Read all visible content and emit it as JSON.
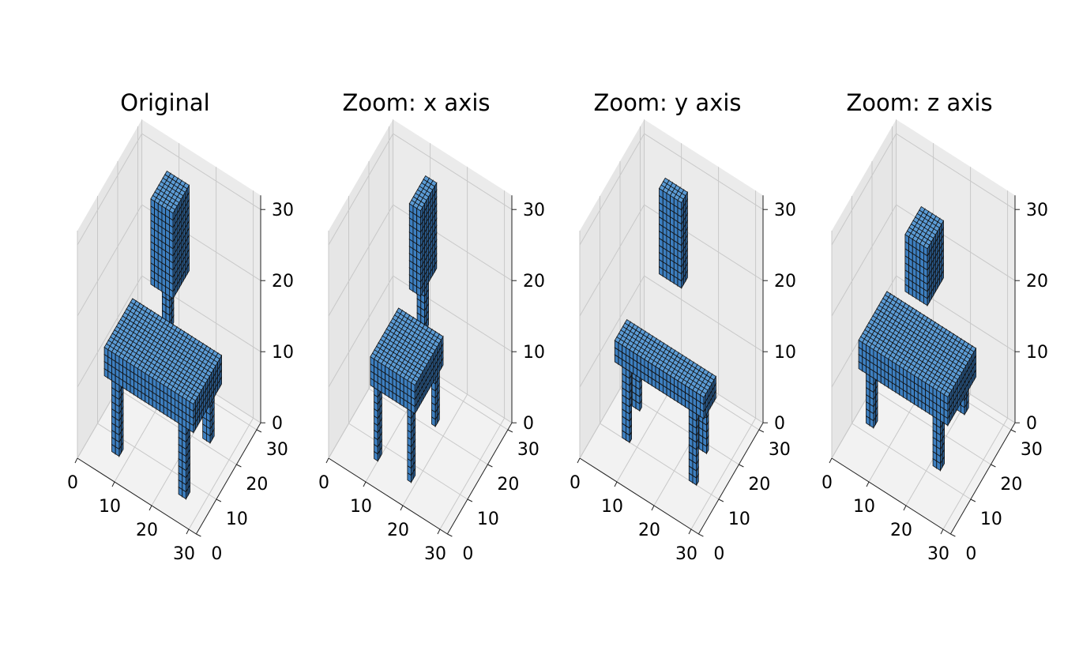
{
  "colors": {
    "voxel": "#3d7fc0",
    "voxel_top": "#5b9bd5",
    "voxel_side": "#2b5f94",
    "edge": "#111111"
  },
  "chart_data": [
    {
      "type": "voxel3d",
      "title": "Original",
      "xticks": [
        "0",
        "10",
        "20",
        "30"
      ],
      "yticks": [
        "0",
        "10",
        "20",
        "30"
      ],
      "zticks": [
        "0",
        "10",
        "20",
        "30"
      ],
      "xlim": [
        0,
        32
      ],
      "ylim": [
        0,
        32
      ],
      "zlim": [
        0,
        32
      ],
      "grid": true,
      "parts": [
        {
          "part": "back",
          "x": [
            10,
            16
          ],
          "y": [
            18,
            26
          ],
          "z": [
            19,
            31
          ]
        },
        {
          "part": "backpost",
          "x": [
            12,
            14
          ],
          "y": [
            20,
            22
          ],
          "z": [
            13,
            19
          ]
        },
        {
          "part": "seat",
          "x": [
            4,
            28
          ],
          "y": [
            6,
            20
          ],
          "z": [
            10,
            14
          ]
        },
        {
          "part": "leg",
          "x": [
            6,
            8
          ],
          "y": [
            6,
            8
          ],
          "z": [
            0,
            10
          ]
        },
        {
          "part": "leg",
          "x": [
            24,
            26
          ],
          "y": [
            6,
            8
          ],
          "z": [
            0,
            10
          ]
        },
        {
          "part": "leg",
          "x": [
            6,
            8
          ],
          "y": [
            18,
            20
          ],
          "z": [
            2,
            10
          ]
        },
        {
          "part": "leg",
          "x": [
            24,
            26
          ],
          "y": [
            18,
            20
          ],
          "z": [
            2,
            10
          ]
        }
      ]
    },
    {
      "type": "voxel3d",
      "title": "Zoom: x axis",
      "xticks": [
        "0",
        "10",
        "20",
        "30"
      ],
      "yticks": [
        "0",
        "10",
        "20",
        "30"
      ],
      "zticks": [
        "0",
        "10",
        "20",
        "30"
      ],
      "xlim": [
        0,
        32
      ],
      "ylim": [
        0,
        32
      ],
      "zlim": [
        0,
        32
      ],
      "grid": true,
      "parts": [
        {
          "part": "back",
          "x": [
            12,
            15
          ],
          "y": [
            18,
            26
          ],
          "z": [
            19,
            31
          ]
        },
        {
          "part": "backpost",
          "x": [
            13,
            15
          ],
          "y": [
            20,
            22
          ],
          "z": [
            13,
            19
          ]
        },
        {
          "part": "seat",
          "x": [
            8,
            20
          ],
          "y": [
            6,
            20
          ],
          "z": [
            10,
            14
          ]
        },
        {
          "part": "leg",
          "x": [
            9,
            10
          ],
          "y": [
            6,
            8
          ],
          "z": [
            0,
            10
          ]
        },
        {
          "part": "leg",
          "x": [
            18,
            19
          ],
          "y": [
            6,
            8
          ],
          "z": [
            0,
            10
          ]
        },
        {
          "part": "leg",
          "x": [
            9,
            10
          ],
          "y": [
            18,
            20
          ],
          "z": [
            2,
            10
          ]
        },
        {
          "part": "leg",
          "x": [
            18,
            19
          ],
          "y": [
            18,
            20
          ],
          "z": [
            2,
            10
          ]
        }
      ]
    },
    {
      "type": "voxel3d",
      "title": "Zoom: y axis",
      "xticks": [
        "0",
        "10",
        "20",
        "30"
      ],
      "yticks": [
        "0",
        "10",
        "20",
        "30"
      ],
      "zticks": [
        "0",
        "10",
        "20",
        "30"
      ],
      "xlim": [
        0,
        32
      ],
      "ylim": [
        0,
        32
      ],
      "zlim": [
        0,
        32
      ],
      "grid": true,
      "parts": [
        {
          "part": "back",
          "x": [
            10,
            16
          ],
          "y": [
            21,
            24
          ],
          "z": [
            19,
            31
          ]
        },
        {
          "part": "seat",
          "x": [
            4,
            28
          ],
          "y": [
            10,
            16
          ],
          "z": [
            10,
            13
          ]
        },
        {
          "part": "leg",
          "x": [
            6,
            8
          ],
          "y": [
            10,
            11
          ],
          "z": [
            0,
            10
          ]
        },
        {
          "part": "leg",
          "x": [
            24,
            26
          ],
          "y": [
            10,
            11
          ],
          "z": [
            0,
            10
          ]
        },
        {
          "part": "leg",
          "x": [
            6,
            8
          ],
          "y": [
            15,
            16
          ],
          "z": [
            2,
            10
          ]
        },
        {
          "part": "leg",
          "x": [
            24,
            26
          ],
          "y": [
            15,
            16
          ],
          "z": [
            2,
            10
          ]
        }
      ]
    },
    {
      "type": "voxel3d",
      "title": "Zoom: z axis",
      "xticks": [
        "0",
        "10",
        "20",
        "30"
      ],
      "yticks": [
        "0",
        "10",
        "20",
        "30"
      ],
      "zticks": [
        "0",
        "10",
        "20",
        "30"
      ],
      "xlim": [
        0,
        32
      ],
      "ylim": [
        0,
        32
      ],
      "zlim": [
        0,
        32
      ],
      "grid": true,
      "parts": [
        {
          "part": "back",
          "x": [
            10,
            16
          ],
          "y": [
            18,
            26
          ],
          "z": [
            18,
            26
          ]
        },
        {
          "part": "seat",
          "x": [
            4,
            28
          ],
          "y": [
            6,
            20
          ],
          "z": [
            11,
            15
          ]
        },
        {
          "part": "leg",
          "x": [
            6,
            8
          ],
          "y": [
            6,
            8
          ],
          "z": [
            4,
            11
          ]
        },
        {
          "part": "leg",
          "x": [
            24,
            26
          ],
          "y": [
            6,
            8
          ],
          "z": [
            4,
            11
          ]
        },
        {
          "part": "leg",
          "x": [
            6,
            8
          ],
          "y": [
            18,
            20
          ],
          "z": [
            6,
            11
          ]
        },
        {
          "part": "leg",
          "x": [
            24,
            26
          ],
          "y": [
            18,
            20
          ],
          "z": [
            6,
            11
          ]
        }
      ]
    }
  ]
}
